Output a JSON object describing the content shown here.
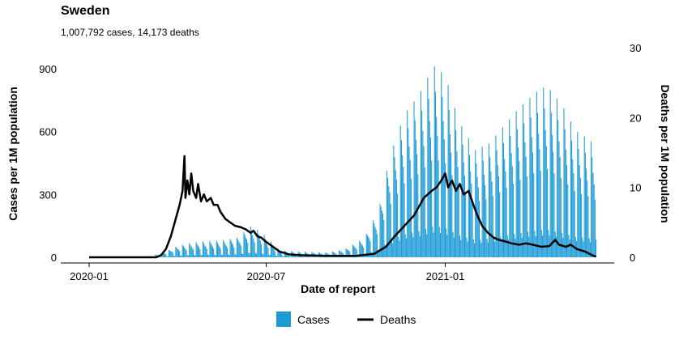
{
  "title": "Sweden",
  "subtitle": "1,007,792 cases, 14,173 deaths",
  "colors": {
    "cases": "#1b9ad6",
    "deaths": "#000000",
    "axis": "#000000"
  },
  "chart_data": {
    "type": "bar",
    "x_type": "date",
    "x_start": "2020-01-01",
    "x_end": "2021-06-07",
    "xlabel": "Date of report",
    "x_ticks": [
      "2020-01",
      "2020-07",
      "2021-01"
    ],
    "y_left": {
      "label": "Cases per 1M population",
      "lim": [
        0,
        1000
      ],
      "ticks": [
        0,
        300,
        600,
        900
      ]
    },
    "y_right": {
      "label": "Deaths per 1M population",
      "lim": [
        0,
        30
      ],
      "ticks": [
        0,
        10,
        20,
        30
      ]
    },
    "legend": {
      "position": "bottom",
      "items": [
        "Cases",
        "Deaths"
      ]
    },
    "series": [
      {
        "name": "Cases",
        "type": "bar",
        "axis": "left",
        "start": "2020-03-01",
        "step_days": 1,
        "weekly_weights": [
          1.55,
          1.35,
          1.15,
          1.0,
          0.8,
          0.25,
          0.2
        ],
        "anchors": [
          [
            "2020-03-01",
            2
          ],
          [
            "2020-03-15",
            12
          ],
          [
            "2020-04-01",
            35
          ],
          [
            "2020-04-15",
            45
          ],
          [
            "2020-05-01",
            50
          ],
          [
            "2020-05-15",
            52
          ],
          [
            "2020-06-01",
            60
          ],
          [
            "2020-06-15",
            95
          ],
          [
            "2020-06-25",
            80
          ],
          [
            "2020-07-15",
            22
          ],
          [
            "2020-08-01",
            18
          ],
          [
            "2020-09-01",
            15
          ],
          [
            "2020-09-20",
            25
          ],
          [
            "2020-10-10",
            60
          ],
          [
            "2020-10-25",
            150
          ],
          [
            "2020-11-05",
            310
          ],
          [
            "2020-11-20",
            440
          ],
          [
            "2020-12-05",
            500
          ],
          [
            "2020-12-20",
            590
          ],
          [
            "2021-01-01",
            560
          ],
          [
            "2021-01-15",
            420
          ],
          [
            "2021-02-01",
            330
          ],
          [
            "2021-02-15",
            350
          ],
          [
            "2021-03-01",
            400
          ],
          [
            "2021-03-15",
            450
          ],
          [
            "2021-04-01",
            500
          ],
          [
            "2021-04-15",
            530
          ],
          [
            "2021-05-01",
            470
          ],
          [
            "2021-05-15",
            390
          ],
          [
            "2021-05-30",
            360
          ],
          [
            "2021-06-05",
            340
          ]
        ]
      },
      {
        "name": "Deaths",
        "type": "line",
        "axis": "right",
        "points": [
          [
            "2020-01-01",
            0
          ],
          [
            "2020-03-10",
            0
          ],
          [
            "2020-03-15",
            0.3
          ],
          [
            "2020-03-20",
            1.2
          ],
          [
            "2020-03-25",
            3.0
          ],
          [
            "2020-03-30",
            5.5
          ],
          [
            "2020-04-03",
            7.5
          ],
          [
            "2020-04-06",
            9.5
          ],
          [
            "2020-04-08",
            14.5
          ],
          [
            "2020-04-09",
            8.5
          ],
          [
            "2020-04-11",
            11.0
          ],
          [
            "2020-04-13",
            9.0
          ],
          [
            "2020-04-15",
            12.0
          ],
          [
            "2020-04-17",
            9.5
          ],
          [
            "2020-04-20",
            8.5
          ],
          [
            "2020-04-22",
            10.5
          ],
          [
            "2020-04-25",
            8.0
          ],
          [
            "2020-04-28",
            9.0
          ],
          [
            "2020-05-01",
            8.0
          ],
          [
            "2020-05-05",
            8.5
          ],
          [
            "2020-05-08",
            7.5
          ],
          [
            "2020-05-12",
            7.5
          ],
          [
            "2020-05-15",
            6.5
          ],
          [
            "2020-05-20",
            5.5
          ],
          [
            "2020-05-25",
            5.0
          ],
          [
            "2020-05-30",
            4.5
          ],
          [
            "2020-06-05",
            4.3
          ],
          [
            "2020-06-10",
            4.0
          ],
          [
            "2020-06-15",
            3.5
          ],
          [
            "2020-06-18",
            3.8
          ],
          [
            "2020-06-22",
            3.0
          ],
          [
            "2020-06-26",
            2.8
          ],
          [
            "2020-07-01",
            2.2
          ],
          [
            "2020-07-08",
            1.5
          ],
          [
            "2020-07-15",
            0.8
          ],
          [
            "2020-07-25",
            0.4
          ],
          [
            "2020-08-05",
            0.3
          ],
          [
            "2020-09-01",
            0.2
          ],
          [
            "2020-10-01",
            0.2
          ],
          [
            "2020-10-20",
            0.5
          ],
          [
            "2020-11-01",
            1.5
          ],
          [
            "2020-11-10",
            3.0
          ],
          [
            "2020-11-20",
            4.5
          ],
          [
            "2020-11-30",
            6.0
          ],
          [
            "2020-12-10",
            8.5
          ],
          [
            "2020-12-18",
            9.5
          ],
          [
            "2020-12-23",
            10.0
          ],
          [
            "2020-12-28",
            11.0
          ],
          [
            "2021-01-01",
            12.0
          ],
          [
            "2021-01-04",
            10.0
          ],
          [
            "2021-01-08",
            11.0
          ],
          [
            "2021-01-12",
            9.5
          ],
          [
            "2021-01-16",
            10.5
          ],
          [
            "2021-01-20",
            9.0
          ],
          [
            "2021-01-25",
            9.5
          ],
          [
            "2021-01-30",
            7.5
          ],
          [
            "2021-02-03",
            6.0
          ],
          [
            "2021-02-08",
            4.5
          ],
          [
            "2021-02-14",
            3.5
          ],
          [
            "2021-02-20",
            2.8
          ],
          [
            "2021-02-25",
            2.5
          ],
          [
            "2021-03-03",
            2.3
          ],
          [
            "2021-03-10",
            2.0
          ],
          [
            "2021-03-18",
            1.8
          ],
          [
            "2021-03-25",
            2.0
          ],
          [
            "2021-04-01",
            1.8
          ],
          [
            "2021-04-10",
            1.5
          ],
          [
            "2021-04-18",
            1.6
          ],
          [
            "2021-04-24",
            2.5
          ],
          [
            "2021-04-28",
            1.8
          ],
          [
            "2021-05-05",
            1.5
          ],
          [
            "2021-05-10",
            1.8
          ],
          [
            "2021-05-16",
            1.2
          ],
          [
            "2021-05-25",
            0.8
          ],
          [
            "2021-06-01",
            0.3
          ],
          [
            "2021-06-05",
            0.1
          ]
        ]
      }
    ]
  }
}
